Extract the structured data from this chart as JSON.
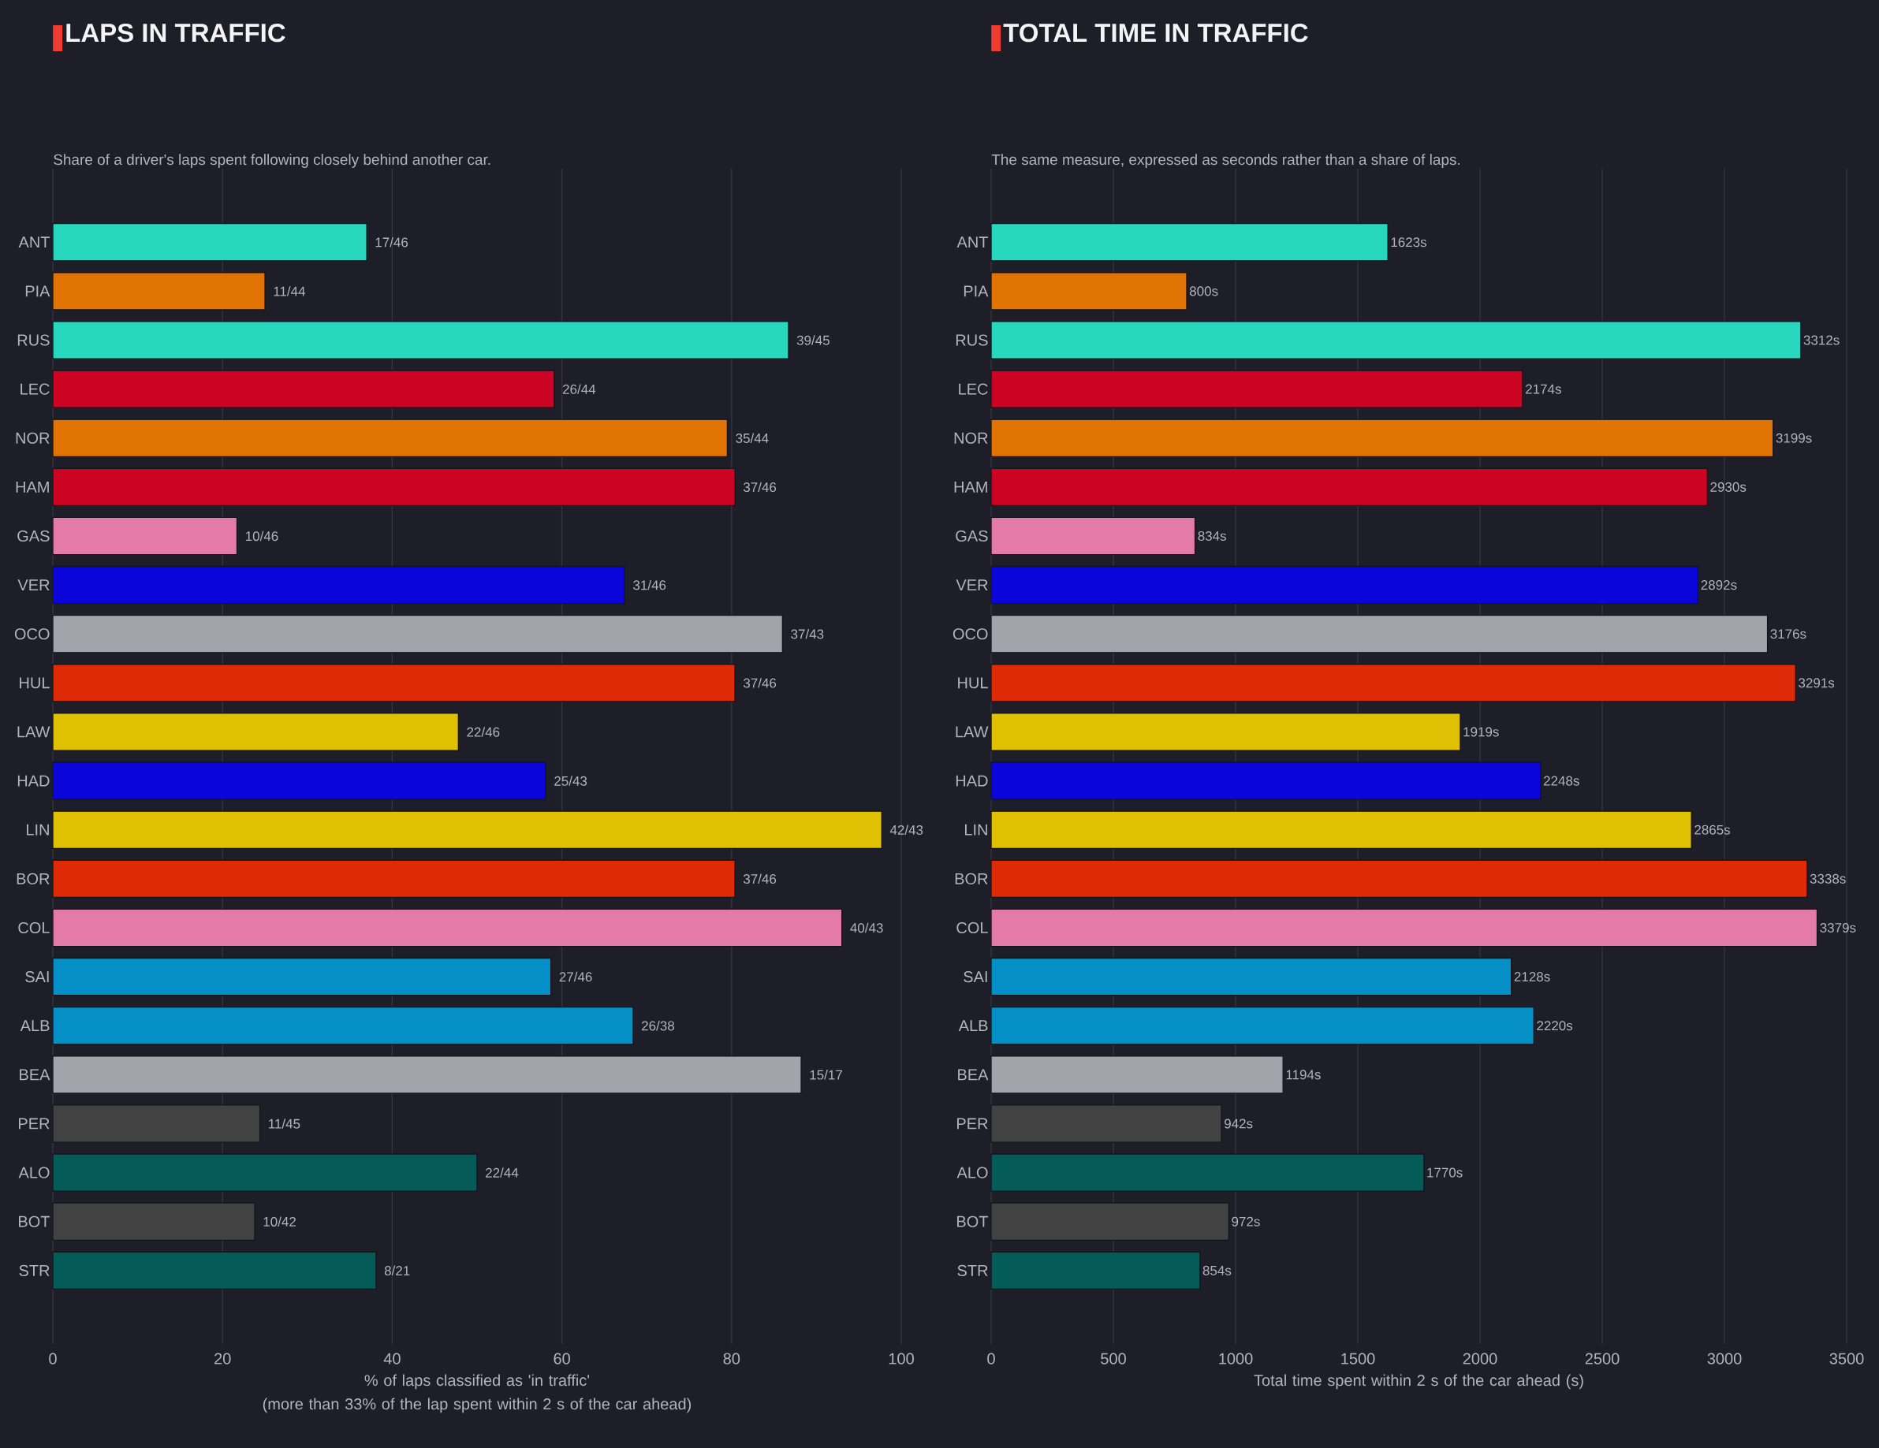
{
  "chart_data": [
    {
      "type": "bar",
      "orientation": "horizontal",
      "title": "LAPS IN TRAFFIC",
      "subtitle": "Share of a driver's laps spent following closely behind another car.",
      "xlabel": "% of laps classified as 'in traffic'\n(more than 33% of the lap spent within 2 s of the car ahead)",
      "categories": [
        "ANT",
        "PIA",
        "RUS",
        "LEC",
        "NOR",
        "HAM",
        "GAS",
        "VER",
        "OCO",
        "HUL",
        "LAW",
        "HAD",
        "LIN",
        "BOR",
        "COL",
        "SAI",
        "ALB",
        "BEA",
        "PER",
        "ALO",
        "BOT",
        "STR"
      ],
      "values": [
        37.0,
        25.0,
        86.7,
        59.1,
        79.5,
        80.4,
        21.7,
        67.4,
        86.0,
        80.4,
        47.8,
        58.1,
        97.7,
        80.4,
        93.0,
        58.7,
        68.4,
        88.2,
        24.4,
        50.0,
        23.8,
        38.1
      ],
      "value_labels": [
        "17/46",
        "11/44",
        "39/45",
        "26/44",
        "35/44",
        "37/46",
        "10/46",
        "31/46",
        "37/43",
        "37/46",
        "22/46",
        "25/43",
        "42/43",
        "37/46",
        "40/43",
        "27/46",
        "26/38",
        "15/17",
        "11/45",
        "22/44",
        "10/42",
        "8/21"
      ],
      "colors": [
        "#27d8be",
        "#e17304",
        "#27d8be",
        "#cc0323",
        "#e17304",
        "#cc0323",
        "#e47aa8",
        "#0a05d8",
        "#a1a4aa",
        "#df2a07",
        "#dfc003",
        "#0a05d8",
        "#dfc003",
        "#df2a07",
        "#e47aa8",
        "#058fc7",
        "#058fc7",
        "#a1a4aa",
        "#424242",
        "#045b57",
        "#424242",
        "#045b57"
      ],
      "xlim": [
        0,
        100
      ],
      "xticks": [
        0,
        20,
        40,
        60,
        80,
        100
      ],
      "grid": "x"
    },
    {
      "type": "bar",
      "orientation": "horizontal",
      "title": "TOTAL TIME IN TRAFFIC",
      "subtitle": "The same measure, expressed as seconds rather than a share of laps.",
      "xlabel": "Total time spent within 2 s of the car ahead (s)",
      "categories": [
        "ANT",
        "PIA",
        "RUS",
        "LEC",
        "NOR",
        "HAM",
        "GAS",
        "VER",
        "OCO",
        "HUL",
        "LAW",
        "HAD",
        "LIN",
        "BOR",
        "COL",
        "SAI",
        "ALB",
        "BEA",
        "PER",
        "ALO",
        "BOT",
        "STR"
      ],
      "values": [
        1623,
        800,
        3312,
        2174,
        3199,
        2930,
        834,
        2892,
        3176,
        3291,
        1919,
        2248,
        2865,
        3338,
        3379,
        2128,
        2220,
        1194,
        942,
        1770,
        972,
        854
      ],
      "value_labels": [
        "1623s",
        "800s",
        "3312s",
        "2174s",
        "3199s",
        "2930s",
        "834s",
        "2892s",
        "3176s",
        "3291s",
        "1919s",
        "2248s",
        "2865s",
        "3338s",
        "3379s",
        "2128s",
        "2220s",
        "1194s",
        "942s",
        "1770s",
        "972s",
        "854s"
      ],
      "colors": [
        "#27d8be",
        "#e17304",
        "#27d8be",
        "#cc0323",
        "#e17304",
        "#cc0323",
        "#e47aa8",
        "#0a05d8",
        "#a1a4aa",
        "#df2a07",
        "#dfc003",
        "#0a05d8",
        "#dfc003",
        "#df2a07",
        "#e47aa8",
        "#058fc7",
        "#058fc7",
        "#a1a4aa",
        "#424242",
        "#045b57",
        "#424242",
        "#045b57"
      ],
      "xlim": [
        0,
        3500
      ],
      "xticks": [
        0,
        500,
        1000,
        1500,
        2000,
        2500,
        3000,
        3500
      ],
      "grid": "x"
    }
  ]
}
